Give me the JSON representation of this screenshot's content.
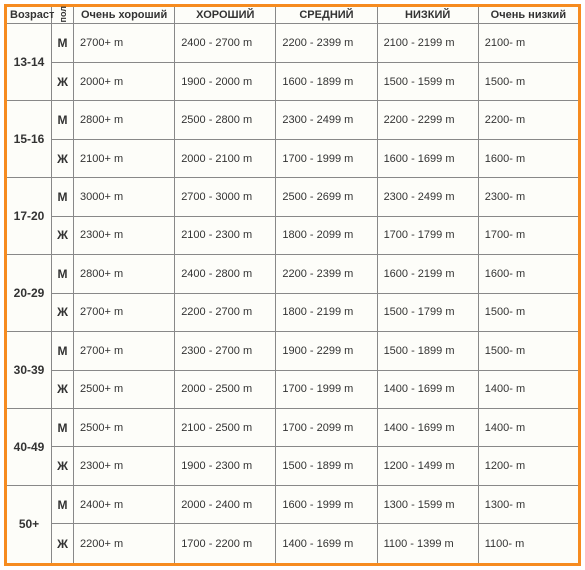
{
  "border_color": "#f68b1f",
  "background_color": "#fdfdf9",
  "grid_color": "#888888",
  "font_family": "Arial",
  "header_fontsize": 11,
  "cell_fontsize": 11.5,
  "headers": {
    "age": "Возраст",
    "gender": "пол",
    "c1": "Очень хороший",
    "c2": "ХОРОШИЙ",
    "c3": "СРЕДНИЙ",
    "c4": "НИЗКИЙ",
    "c5": "Очень низкий"
  },
  "col_widths": {
    "age": 46,
    "gender": 20
  },
  "genders": {
    "m": "М",
    "f": "Ж"
  },
  "rows": [
    {
      "age": "13-14",
      "m": [
        "2700+ m",
        "2400 - 2700 m",
        "2200 - 2399 m",
        "2100 - 2199 m",
        "2100- m"
      ],
      "f": [
        "2000+ m",
        "1900 - 2000 m",
        "1600 - 1899 m",
        "1500 - 1599 m",
        "1500- m"
      ]
    },
    {
      "age": "15-16",
      "m": [
        "2800+ m",
        "2500 - 2800 m",
        "2300 - 2499 m",
        "2200 - 2299 m",
        "2200- m"
      ],
      "f": [
        "2100+ m",
        "2000 - 2100 m",
        "1700 - 1999 m",
        "1600 - 1699 m",
        "1600- m"
      ]
    },
    {
      "age": "17-20",
      "m": [
        "3000+ m",
        "2700 - 3000 m",
        "2500 - 2699 m",
        "2300 - 2499 m",
        "2300- m"
      ],
      "f": [
        "2300+ m",
        "2100 - 2300 m",
        "1800 - 2099 m",
        "1700 - 1799 m",
        "1700- m"
      ]
    },
    {
      "age": "20-29",
      "m": [
        "2800+ m",
        "2400 - 2800 m",
        "2200 - 2399 m",
        "1600 - 2199 m",
        "1600- m"
      ],
      "f": [
        "2700+ m",
        "2200 - 2700 m",
        "1800 - 2199 m",
        "1500 - 1799 m",
        "1500- m"
      ]
    },
    {
      "age": "30-39",
      "m": [
        "2700+ m",
        "2300 - 2700 m",
        "1900 - 2299 m",
        "1500 - 1899 m",
        "1500- m"
      ],
      "f": [
        "2500+ m",
        "2000 - 2500 m",
        "1700 - 1999 m",
        "1400 - 1699 m",
        "1400- m"
      ]
    },
    {
      "age": "40-49",
      "m": [
        "2500+ m",
        "2100 - 2500 m",
        "1700 - 2099 m",
        "1400 - 1699 m",
        "1400- m"
      ],
      "f": [
        "2300+ m",
        "1900 - 2300 m",
        "1500 - 1899 m",
        "1200 - 1499 m",
        "1200- m"
      ]
    },
    {
      "age": "50+",
      "m": [
        "2400+ m",
        "2000 - 2400 m",
        "1600 - 1999 m",
        "1300 - 1599 m",
        "1300- m"
      ],
      "f": [
        "2200+ m",
        "1700 - 2200 m",
        "1400 - 1699 m",
        "1100 - 1399 m",
        "1100- m"
      ]
    }
  ]
}
